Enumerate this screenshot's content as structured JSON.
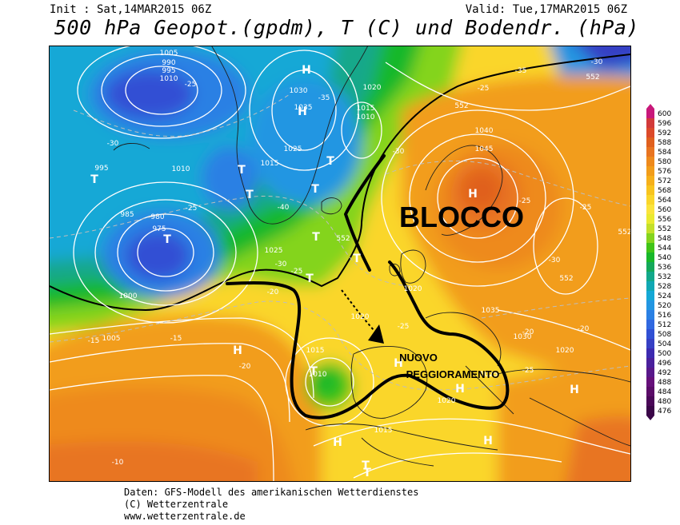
{
  "header": {
    "init": "Init : Sat,14MAR2015 06Z",
    "valid": "Valid: Tue,17MAR2015 06Z",
    "title": "500 hPa Geopot.(gpdm), T (C) und Bodendr. (hPa)"
  },
  "annotations": {
    "blocco": "BLOCCO",
    "nuovo_line1": "NUOVO",
    "nuovo_line2": "PEGGIORAMENTO"
  },
  "pressure_centers": [
    "H",
    "H",
    "H",
    "H",
    "H",
    "H",
    "H",
    "H",
    "H",
    "T",
    "T",
    "T",
    "T",
    "T",
    "T",
    "T",
    "T",
    "T",
    "T",
    "T",
    "T"
  ],
  "isobar_labels": [
    "1005",
    "990",
    "995",
    "1010",
    "1030",
    "1035",
    "1040",
    "1045",
    "1020",
    "1025",
    "1015",
    "985",
    "980",
    "975",
    "1000",
    "995",
    "1010",
    "1005",
    "1015",
    "1010",
    "1020",
    "1025",
    "1015",
    "1035",
    "1030",
    "1020",
    "1025",
    "1020",
    "1015",
    "1020",
    "1010"
  ],
  "temperature_labels": [
    "-25",
    "-30",
    "-35",
    "-40",
    "-25",
    "-30",
    "-25",
    "-20",
    "-15",
    "-15",
    "-10",
    "-20",
    "-25",
    "-30",
    "-25",
    "-20",
    "-25",
    "-20",
    "-25",
    "-30",
    "-25",
    "-35",
    "-30"
  ],
  "geopotential_labels": [
    "552",
    "552",
    "552",
    "552",
    "552"
  ],
  "legend": {
    "unit": "gpdm",
    "values": [
      600,
      596,
      592,
      588,
      584,
      580,
      576,
      572,
      568,
      564,
      560,
      556,
      552,
      548,
      544,
      540,
      536,
      532,
      528,
      524,
      520,
      516,
      512,
      508,
      504,
      500,
      496,
      492,
      488,
      484,
      480,
      476
    ],
    "colors": [
      "#c8187a",
      "#d23a3a",
      "#dc4a2a",
      "#e0601e",
      "#e87420",
      "#ee8a1c",
      "#f29d1a",
      "#f6b01a",
      "#f8c41e",
      "#fad62a",
      "#fbe43c",
      "#eaea30",
      "#c4e02a",
      "#84d41e",
      "#40c418",
      "#18b82a",
      "#14a85a",
      "#12a88a",
      "#10a8b4",
      "#14a8d6",
      "#2296e2",
      "#2a80e4",
      "#3068e0",
      "#3050d4",
      "#3640c4",
      "#3c2ab0",
      "#4a209c",
      "#58188a",
      "#66107a",
      "#5a0c68",
      "#4a0858",
      "#3a0648"
    ]
  },
  "footer": {
    "line1": "Daten: GFS-Modell des amerikanischen Wetterdienstes",
    "line2": "(C) Wetterzentrale",
    "line3": "www.wetterzentrale.de"
  }
}
